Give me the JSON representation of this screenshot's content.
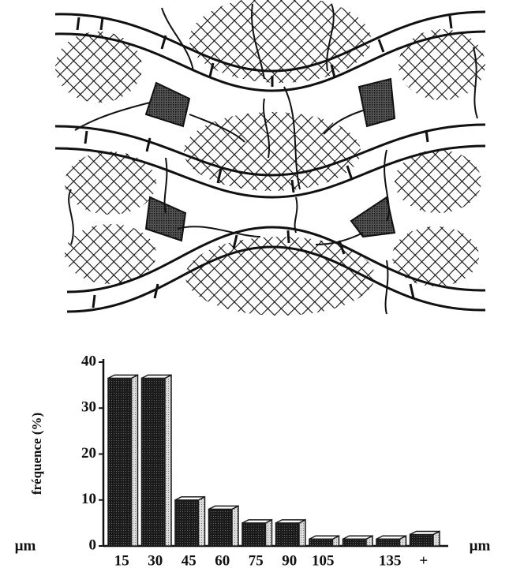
{
  "chart_data": {
    "type": "bar",
    "y_label": "fréquence (%)",
    "x_label": "µm",
    "categories": [
      "15",
      "30",
      "45",
      "60",
      "75",
      "90",
      "105",
      null,
      "135",
      "+"
    ],
    "values": [
      36.5,
      36.5,
      10,
      8,
      5,
      5,
      1.5,
      1.5,
      1.5,
      2.5
    ],
    "color": "#1a1a1a",
    "ylim": [
      0,
      40
    ],
    "yticks": [
      0,
      10,
      20,
      30,
      40
    ],
    "grid": false
  }
}
